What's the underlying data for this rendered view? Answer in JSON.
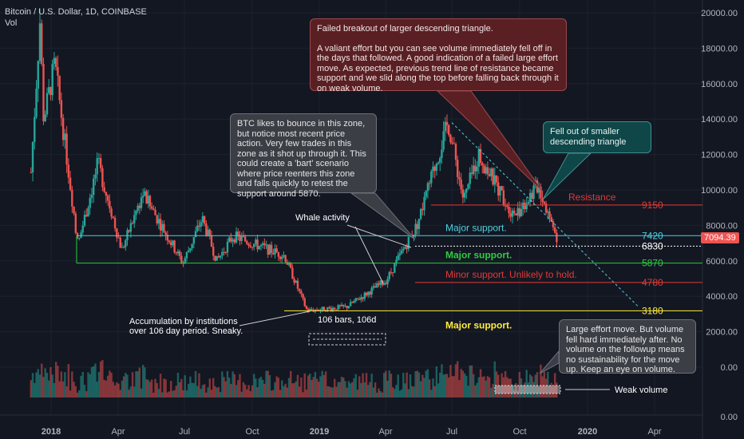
{
  "header": {
    "symbol": "Bitcoin / U.S. Dollar, 1D, COINBASE",
    "volume_label": "Vol"
  },
  "colors": {
    "bg": "#131722",
    "up": "#26a69a",
    "down": "#ef5350",
    "cyan": "#4dd0e1",
    "green": "#2ecc40",
    "red": "#e53935",
    "yellow": "#ffeb3b",
    "white": "#ffffff",
    "grid": "#1e222d"
  },
  "chart_data": {
    "type": "candlestick",
    "title": "Bitcoin / U.S. Dollar, 1D, COINBASE",
    "x_ticks": [
      "2018",
      "Apr",
      "Jul",
      "Oct",
      "2019",
      "Apr",
      "Jul",
      "Oct",
      "2020",
      "Apr"
    ],
    "y_ticks": [
      "20000.00",
      "18000.00",
      "16000.00",
      "14000.00",
      "12000.00",
      "10000.00",
      "8000.00",
      "6000.00",
      "4000.00",
      "2000.00",
      "0.00",
      "0.00"
    ],
    "ylim": [
      0,
      20000
    ],
    "price_path": [
      [
        "2017-12-05",
        11000
      ],
      [
        "2017-12-17",
        19500
      ],
      [
        "2017-12-22",
        14000
      ],
      [
        "2018-01-06",
        17100
      ],
      [
        "2018-02-06",
        6900
      ],
      [
        "2018-03-05",
        11500
      ],
      [
        "2018-04-06",
        6600
      ],
      [
        "2018-05-05",
        9800
      ],
      [
        "2018-06-29",
        5870
      ],
      [
        "2018-07-25",
        8400
      ],
      [
        "2018-08-14",
        6000
      ],
      [
        "2018-09-05",
        7400
      ],
      [
        "2018-11-14",
        6300
      ],
      [
        "2018-12-15",
        3200
      ],
      [
        "2019-02-07",
        3400
      ],
      [
        "2019-04-02",
        4900
      ],
      [
        "2019-05-14",
        8000
      ],
      [
        "2019-06-26",
        13800
      ],
      [
        "2019-07-17",
        9400
      ],
      [
        "2019-08-06",
        12000
      ],
      [
        "2019-09-24",
        8500
      ],
      [
        "2019-10-26",
        10300
      ],
      [
        "2019-11-22",
        7094
      ]
    ],
    "levels": [
      {
        "value": 9150,
        "label": "9150",
        "text": "Resistance",
        "color": "#e53935"
      },
      {
        "value": 7420,
        "label": "7420",
        "text": "Major support.",
        "color": "#4dd0e1"
      },
      {
        "value": 6830,
        "label": "6830",
        "text": "",
        "color": "#ffffff"
      },
      {
        "value": 5870,
        "label": "5870",
        "text": "Major support.",
        "color": "#2ecc40"
      },
      {
        "value": 4780,
        "label": "4780",
        "text": "Minor support. Unlikely to hold.",
        "color": "#e53935"
      },
      {
        "value": 3180,
        "label": "3180",
        "text": "Major support.",
        "color": "#ffeb3b"
      }
    ],
    "last_price": "7094.39",
    "annotations": {
      "whale": "Whale activity",
      "accumulation": [
        "Accumulation by institutions",
        "over 106 day period. Sneaky."
      ],
      "bars": "106 bars, 106d",
      "weak_volume": "Weak volume"
    }
  },
  "notes": {
    "failed_breakout": {
      "title": "Failed breakout of larger descending triangle.",
      "body": "A valiant effort but you can see volume immediately fell off in the days that followed. A good indication of a failed large effort move. As expected, previous trend line of resistance became support and we slid along the top before falling back through it on weak volume."
    },
    "btc_bounce": "BTC likes to bounce in this zone, but notice most recent price action. Very few trades in this zone as it shot up through it. This could create a 'bart' scenario where price reenters this zone and falls quickly to retest the support around 5870.",
    "smaller_triangle": "Fell out of smaller descending triangle",
    "large_effort": "Large effort move. But volume fell hard immediately after. No volume on the followup means no sustainability for the move up. Keep an eye on volume."
  }
}
